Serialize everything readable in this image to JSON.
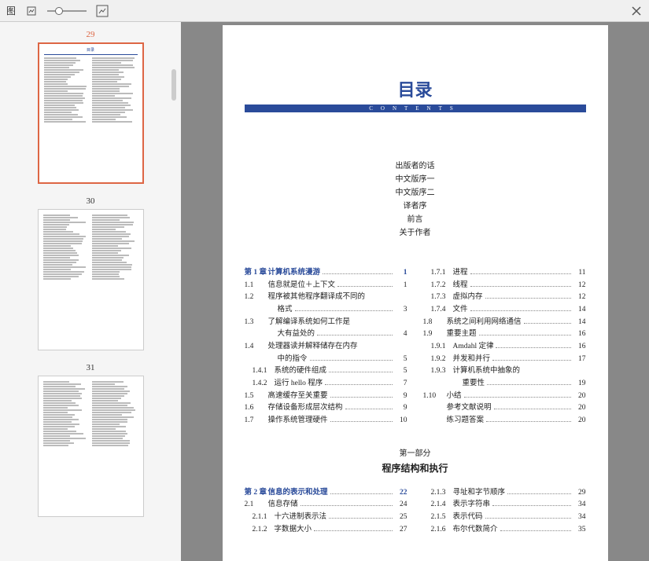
{
  "toolbar": {
    "label": "图"
  },
  "thumbs": [
    {
      "num": "29",
      "active": true
    },
    {
      "num": "30",
      "active": false
    },
    {
      "num": "31",
      "active": false
    }
  ],
  "doc": {
    "title": "目录",
    "subtitle": "CONTENTS",
    "front": [
      "出版者的话",
      "中文版序一",
      "中文版序二",
      "译者序",
      "前言",
      "关于作者"
    ],
    "left": [
      {
        "n": "第 1 章",
        "t": "计算机系统漫游",
        "p": "1",
        "chap": true
      },
      {
        "n": "1.1",
        "t": "信息就是位＋上下文",
        "p": "1"
      },
      {
        "n": "1.2",
        "t": "程序被其他程序翻译成不同的",
        "cont": true
      },
      {
        "n": "",
        "t": "格式",
        "p": "3",
        "ind": true
      },
      {
        "n": "1.3",
        "t": "了解编译系统如何工作是",
        "cont": true
      },
      {
        "n": "",
        "t": "大有益处的",
        "p": "4",
        "ind": true
      },
      {
        "n": "1.4",
        "t": "处理器读并解释储存在内存",
        "cont": true
      },
      {
        "n": "",
        "t": "中的指令",
        "p": "5",
        "ind": true
      },
      {
        "n": "1.4.1",
        "t": "系统的硬件组成",
        "p": "5",
        "sub": true
      },
      {
        "n": "1.4.2",
        "t": "运行 hello 程序",
        "p": "7",
        "sub": true
      },
      {
        "n": "1.5",
        "t": "高速缓存至关重要",
        "p": "9"
      },
      {
        "n": "1.6",
        "t": "存储设备形成层次结构",
        "p": "9"
      },
      {
        "n": "1.7",
        "t": "操作系统管理硬件",
        "p": "10"
      }
    ],
    "right": [
      {
        "n": "1.7.1",
        "t": "进程",
        "p": "11",
        "sub": true
      },
      {
        "n": "1.7.2",
        "t": "线程",
        "p": "12",
        "sub": true
      },
      {
        "n": "1.7.3",
        "t": "虚拟内存",
        "p": "12",
        "sub": true
      },
      {
        "n": "1.7.4",
        "t": "文件",
        "p": "14",
        "sub": true
      },
      {
        "n": "1.8",
        "t": "系统之间利用网络通信",
        "p": "14"
      },
      {
        "n": "1.9",
        "t": "重要主题",
        "p": "16"
      },
      {
        "n": "1.9.1",
        "t": "Amdahl 定律",
        "p": "16",
        "sub": true
      },
      {
        "n": "1.9.2",
        "t": "并发和并行",
        "p": "17",
        "sub": true
      },
      {
        "n": "1.9.3",
        "t": "计算机系统中抽象的",
        "sub": true,
        "cont": true
      },
      {
        "n": "",
        "t": "重要性",
        "p": "19",
        "ind": true,
        "sub": true
      },
      {
        "n": "1.10",
        "t": "小结",
        "p": "20"
      },
      {
        "n": "",
        "t": "参考文献说明",
        "p": "20"
      },
      {
        "n": "",
        "t": "练习题答案",
        "p": "20"
      }
    ],
    "part": {
      "label": "第一部分",
      "title": "程序结构和执行"
    },
    "left2": [
      {
        "n": "第 2 章",
        "t": "信息的表示和处理",
        "p": "22",
        "chap": true
      },
      {
        "n": "2.1",
        "t": "信息存储",
        "p": "24"
      },
      {
        "n": "2.1.1",
        "t": "十六进制表示法",
        "p": "25",
        "sub": true
      },
      {
        "n": "2.1.2",
        "t": "字数据大小",
        "p": "27",
        "sub": true
      }
    ],
    "right2": [
      {
        "n": "2.1.3",
        "t": "寻址和字节顺序",
        "p": "29",
        "sub": true
      },
      {
        "n": "2.1.4",
        "t": "表示字符串",
        "p": "34",
        "sub": true
      },
      {
        "n": "2.1.5",
        "t": "表示代码",
        "p": "34",
        "sub": true
      },
      {
        "n": "2.1.6",
        "t": "布尔代数简介",
        "p": "35",
        "sub": true
      }
    ]
  }
}
